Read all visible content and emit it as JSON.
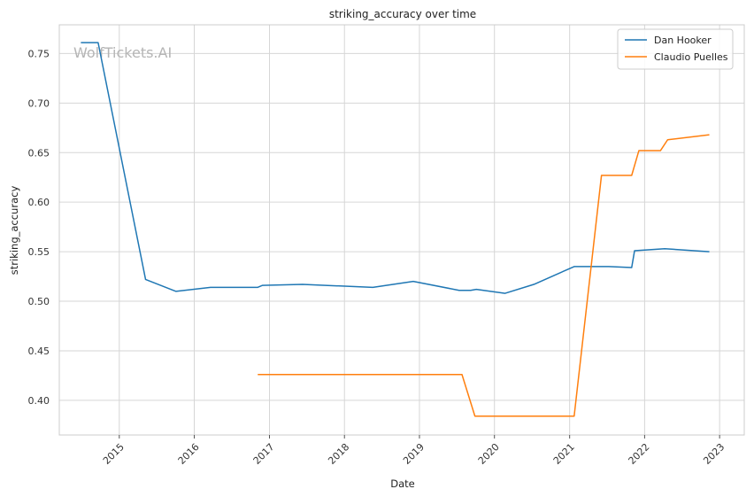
{
  "chart_data": {
    "type": "line",
    "title": "striking_accuracy over time",
    "xlabel": "Date",
    "ylabel": "striking_accuracy",
    "watermark": "WolfTickets.AI",
    "xlim": [
      "2014-03-15",
      "2023-05-01"
    ],
    "ylim": [
      0.365,
      0.779
    ],
    "x_ticks": [
      "2015-01-01",
      "2016-01-01",
      "2017-01-01",
      "2018-01-01",
      "2019-01-01",
      "2020-01-01",
      "2021-01-01",
      "2022-01-01",
      "2023-01-01"
    ],
    "x_tick_labels": [
      "2015",
      "2016",
      "2017",
      "2018",
      "2019",
      "2020",
      "2021",
      "2022",
      "2023"
    ],
    "y_ticks": [
      0.4,
      0.45,
      0.5,
      0.55,
      0.6,
      0.65,
      0.7,
      0.75
    ],
    "y_tick_labels": [
      "0.40",
      "0.45",
      "0.50",
      "0.55",
      "0.60",
      "0.65",
      "0.70",
      "0.75"
    ],
    "grid": true,
    "legend_position": "top-right",
    "series": [
      {
        "name": "Dan Hooker",
        "color": "#1f77b4",
        "points": [
          {
            "x": "2014-06-28",
            "y": 0.761
          },
          {
            "x": "2014-09-20",
            "y": 0.761
          },
          {
            "x": "2015-05-09",
            "y": 0.522
          },
          {
            "x": "2015-10-03",
            "y": 0.51
          },
          {
            "x": "2016-03-20",
            "y": 0.514
          },
          {
            "x": "2016-11-05",
            "y": 0.514
          },
          {
            "x": "2016-11-27",
            "y": 0.516
          },
          {
            "x": "2017-06-11",
            "y": 0.517
          },
          {
            "x": "2018-05-19",
            "y": 0.514
          },
          {
            "x": "2018-12-02",
            "y": 0.52
          },
          {
            "x": "2019-07-13",
            "y": 0.511
          },
          {
            "x": "2019-09-07",
            "y": 0.511
          },
          {
            "x": "2019-10-05",
            "y": 0.512
          },
          {
            "x": "2020-02-22",
            "y": 0.508
          },
          {
            "x": "2020-07-11",
            "y": 0.517
          },
          {
            "x": "2021-01-23",
            "y": 0.535
          },
          {
            "x": "2021-07-10",
            "y": 0.535
          },
          {
            "x": "2021-10-30",
            "y": 0.534
          },
          {
            "x": "2021-11-13",
            "y": 0.551
          },
          {
            "x": "2022-04-09",
            "y": 0.553
          },
          {
            "x": "2022-11-12",
            "y": 0.55
          }
        ]
      },
      {
        "name": "Claudio Puelles",
        "color": "#ff7f0e",
        "points": [
          {
            "x": "2016-11-05",
            "y": 0.426
          },
          {
            "x": "2019-07-27",
            "y": 0.426
          },
          {
            "x": "2019-09-28",
            "y": 0.384
          },
          {
            "x": "2021-01-23",
            "y": 0.384
          },
          {
            "x": "2021-06-05",
            "y": 0.627
          },
          {
            "x": "2021-10-30",
            "y": 0.627
          },
          {
            "x": "2021-12-04",
            "y": 0.652
          },
          {
            "x": "2022-03-19",
            "y": 0.652
          },
          {
            "x": "2022-04-23",
            "y": 0.663
          },
          {
            "x": "2022-11-12",
            "y": 0.668
          }
        ]
      }
    ]
  }
}
